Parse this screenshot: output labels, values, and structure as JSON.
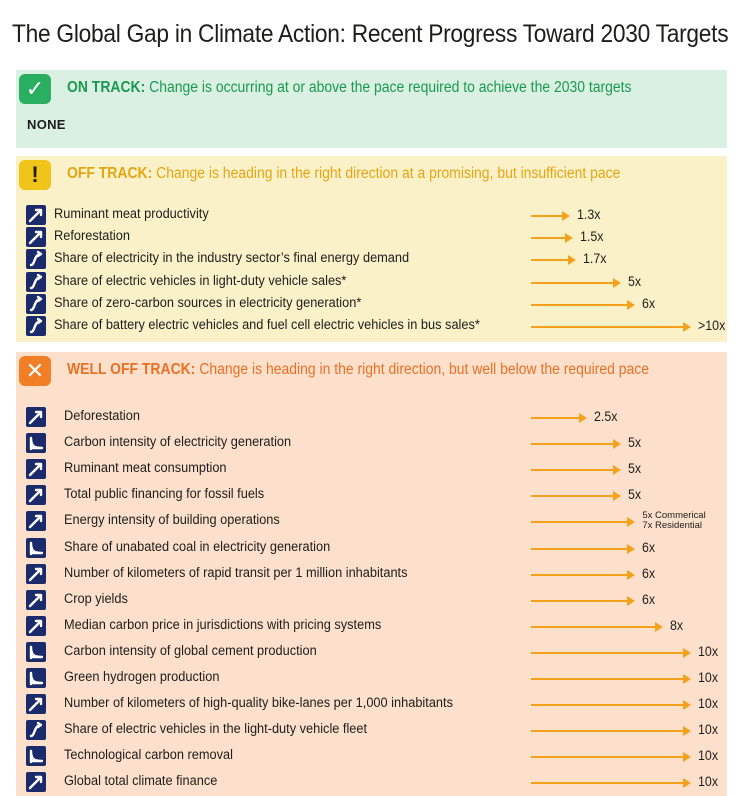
{
  "title": "The Global Gap in Climate Action: Recent Progress Toward 2030 Targets",
  "colors": {
    "on_track_bg": "#daf0e3",
    "on_track_accent": "#2aae5f",
    "on_track_text": "#1a9a4e",
    "off_track_bg": "#fbf1c9",
    "off_track_accent": "#f0c419",
    "off_track_text": "#e3a613",
    "well_off_bg": "#fde0cc",
    "well_off_accent": "#f07f26",
    "well_off_text": "#ea7024",
    "arrow": "#f4a21c",
    "icon_bg": "#1b2a6b"
  },
  "chart_data": {
    "type": "table",
    "title": "The Global Gap in Climate Action: Recent Progress Toward 2030 Targets",
    "sections": [
      {
        "key": "on_track",
        "badge": "✓",
        "heading": "ON TRACK:",
        "description": "Change is occurring at or above the pace required to achieve the 2030 targets",
        "none_label": "NONE",
        "rows": []
      },
      {
        "key": "off_track",
        "badge": "!",
        "heading": "OFF TRACK:",
        "description": "Change is heading in the right direction at a promising, but insufficient pace",
        "rows": [
          {
            "label": "Ruminant meat productivity",
            "multiplier": "1.3x",
            "value": 1.3,
            "trend": "linear-up"
          },
          {
            "label": "Reforestation",
            "multiplier": "1.5x",
            "value": 1.5,
            "trend": "linear-up"
          },
          {
            "label": "Share of electricity in the industry sector’s final energy demand",
            "multiplier": "1.7x",
            "value": 1.7,
            "trend": "s-curve"
          },
          {
            "label": "Share of electric vehicles in light-duty vehicle sales*",
            "multiplier": "5x",
            "value": 5,
            "trend": "s-curve"
          },
          {
            "label": "Share of zero-carbon sources in electricity generation*",
            "multiplier": "6x",
            "value": 6,
            "trend": "s-curve"
          },
          {
            "label": "Share of battery electric vehicles and fuel cell electric vehicles in bus sales*",
            "multiplier": ">10x",
            "value": 10,
            "trend": "s-curve"
          }
        ]
      },
      {
        "key": "well_off_track",
        "badge": "✕",
        "heading": "WELL OFF TRACK:",
        "description": "Change is heading in the right direction, but well below the required pace",
        "rows": [
          {
            "label": "Deforestation",
            "multiplier": "2.5x",
            "value": 2.5,
            "trend": "linear-down"
          },
          {
            "label": "Carbon intensity of electricity generation",
            "multiplier": "5x",
            "value": 5,
            "trend": "decay"
          },
          {
            "label": "Ruminant meat consumption",
            "multiplier": "5x",
            "value": 5,
            "trend": "linear-down"
          },
          {
            "label": "Total public financing for fossil fuels",
            "multiplier": "5x",
            "value": 5,
            "trend": "linear-down"
          },
          {
            "label": "Energy intensity of building operations",
            "multiplier": "",
            "multiplier_lines": [
              "5x Commerical",
              "7x Residential"
            ],
            "value": 6,
            "trend": "linear-down"
          },
          {
            "label": "Share of unabated coal in electricity generation",
            "multiplier": "6x",
            "value": 6,
            "trend": "decay"
          },
          {
            "label": "Number of kilometers of rapid transit per 1 million inhabitants",
            "multiplier": "6x",
            "value": 6,
            "trend": "linear-up"
          },
          {
            "label": "Crop yields",
            "multiplier": "6x",
            "value": 6,
            "trend": "linear-up"
          },
          {
            "label": "Median carbon price in jurisdictions with pricing systems",
            "multiplier": "8x",
            "value": 8,
            "trend": "linear-up"
          },
          {
            "label": "Carbon intensity of global cement production",
            "multiplier": "10x",
            "value": 10,
            "trend": "decay"
          },
          {
            "label": "Green hydrogen production",
            "multiplier": "10x",
            "value": 10,
            "trend": "decay"
          },
          {
            "label": "Number of kilometers of high-quality bike-lanes per 1,000 inhabitants",
            "multiplier": "10x",
            "value": 10,
            "trend": "linear-up"
          },
          {
            "label": "Share of electric vehicles in the light-duty vehicle fleet",
            "multiplier": "10x",
            "value": 10,
            "trend": "s-curve"
          },
          {
            "label": "Technological carbon removal",
            "multiplier": "10x",
            "value": 10,
            "trend": "decay"
          },
          {
            "label": "Global total climate finance",
            "multiplier": "10x",
            "value": 10,
            "trend": "linear-up"
          }
        ]
      }
    ]
  }
}
